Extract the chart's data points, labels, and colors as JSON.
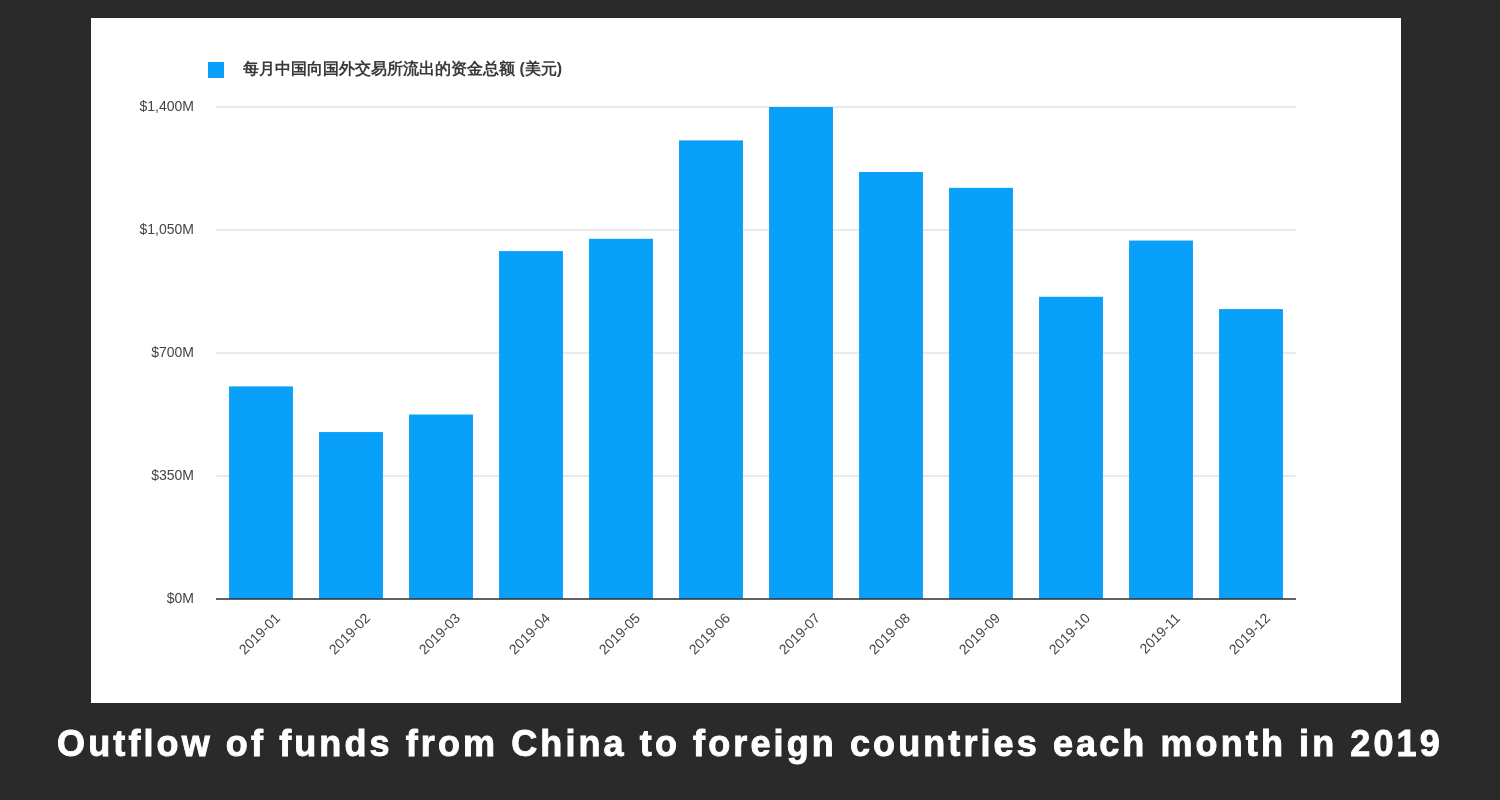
{
  "chart_data": {
    "type": "bar",
    "title": "Outflow of funds from China to foreign countries each month in 2019",
    "categories": [
      "2019-01",
      "2019-02",
      "2019-03",
      "2019-04",
      "2019-05",
      "2019-06",
      "2019-07",
      "2019-08",
      "2019-09",
      "2019-10",
      "2019-11",
      "2019-12"
    ],
    "series": [
      {
        "name": "每月中国向国外交易所流出的资金总额 (美元)",
        "color": "#09a0fa",
        "values": [
          605,
          475,
          525,
          990,
          1025,
          1305,
          1400,
          1215,
          1170,
          860,
          1020,
          825
        ]
      }
    ],
    "ylim": [
      0,
      1400
    ],
    "yticks": [
      {
        "value": 0,
        "label": "$0M"
      },
      {
        "value": 350,
        "label": "$350M"
      },
      {
        "value": 700,
        "label": "$700M"
      },
      {
        "value": 1050,
        "label": "$1,050M"
      },
      {
        "value": 1400,
        "label": "$1,400M"
      }
    ],
    "grid": "y",
    "legend": "top left"
  }
}
